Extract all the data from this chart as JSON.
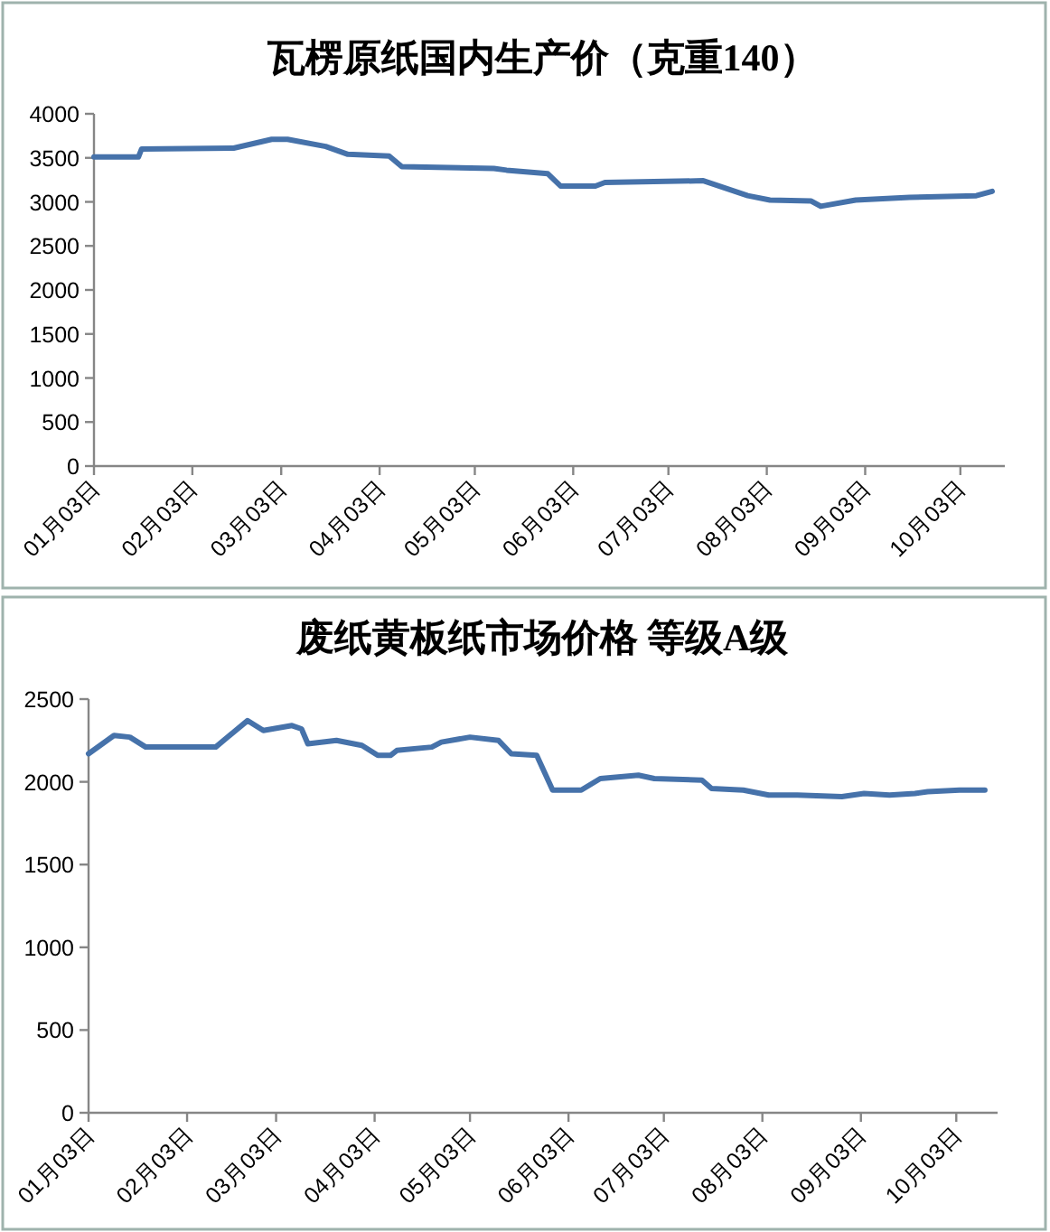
{
  "chart_data": [
    {
      "type": "line",
      "title": "瓦楞原纸国内生产价（克重140）",
      "x": [
        "--01-03",
        "--01-17",
        "--01-18",
        "--02-16",
        "--02-28",
        "--03-05",
        "--03-17",
        "--03-24",
        "--04-06",
        "--04-10",
        "--05-09",
        "--05-13",
        "--05-26",
        "--05-30",
        "--06-10",
        "--06-13",
        "--07-14",
        "--07-28",
        "--08-04",
        "--08-17",
        "--08-20",
        "--08-31",
        "--09-17",
        "--10-08",
        "--10-13"
      ],
      "series": [
        {
          "color": "#4672aa",
          "values": [
            3510,
            3510,
            3600,
            3610,
            3710,
            3710,
            3630,
            3540,
            3520,
            3400,
            3380,
            3360,
            3320,
            3180,
            3180,
            3220,
            3240,
            3070,
            3020,
            3010,
            2950,
            3020,
            3050,
            3070,
            3120
          ]
        }
      ],
      "xlim": [
        "--01-03",
        "--10-17"
      ],
      "ylim": [
        0,
        4000
      ],
      "yticks": [
        0,
        500,
        1000,
        1500,
        2000,
        2500,
        3000,
        3500,
        4000
      ],
      "xticks": [
        {
          "value": "--01-03",
          "label": "01月03日"
        },
        {
          "value": "--02-03",
          "label": "02月03日"
        },
        {
          "value": "--03-03",
          "label": "03月03日"
        },
        {
          "value": "--04-03",
          "label": "04月03日"
        },
        {
          "value": "--05-03",
          "label": "05月03日"
        },
        {
          "value": "--06-03",
          "label": "06月03日"
        },
        {
          "value": "--07-03",
          "label": "07月03日"
        },
        {
          "value": "--08-03",
          "label": "08月03日"
        },
        {
          "value": "--09-03",
          "label": "09月03日"
        },
        {
          "value": "--10-03",
          "label": "10月03日"
        }
      ]
    },
    {
      "type": "line",
      "title": "废纸黄板纸市场价格 等级A级",
      "x": [
        "--01-03",
        "--01-11",
        "--01-16",
        "--01-21",
        "--02-12",
        "--02-22",
        "--02-27",
        "--03-08",
        "--03-11",
        "--03-13",
        "--03-22",
        "--03-30",
        "--04-04",
        "--04-08",
        "--04-10",
        "--04-21",
        "--04-24",
        "--05-03",
        "--05-12",
        "--05-16",
        "--05-24",
        "--05-29",
        "--06-07",
        "--06-13",
        "--06-25",
        "--06-30",
        "--07-15",
        "--07-18",
        "--07-28",
        "--08-05",
        "--08-14",
        "--08-28",
        "--09-04",
        "--09-12",
        "--09-20",
        "--09-24",
        "--10-04",
        "--10-12"
      ],
      "series": [
        {
          "color": "#4672aa",
          "values": [
            2170,
            2280,
            2270,
            2210,
            2210,
            2370,
            2310,
            2340,
            2320,
            2230,
            2250,
            2220,
            2160,
            2160,
            2190,
            2210,
            2240,
            2270,
            2250,
            2170,
            2160,
            1950,
            1950,
            2020,
            2040,
            2020,
            2010,
            1960,
            1950,
            1920,
            1920,
            1910,
            1930,
            1920,
            1930,
            1940,
            1950,
            1950
          ]
        }
      ],
      "xlim": [
        "--01-03",
        "--10-16"
      ],
      "ylim": [
        0,
        2500
      ],
      "yticks": [
        0,
        500,
        1000,
        1500,
        2000,
        2500
      ],
      "xticks": [
        {
          "value": "--01-03",
          "label": "01月03日"
        },
        {
          "value": "--02-03",
          "label": "02月03日"
        },
        {
          "value": "--03-03",
          "label": "03月03日"
        },
        {
          "value": "--04-03",
          "label": "04月03日"
        },
        {
          "value": "--05-03",
          "label": "05月03日"
        },
        {
          "value": "--06-03",
          "label": "06月03日"
        },
        {
          "value": "--07-03",
          "label": "07月03日"
        },
        {
          "value": "--08-03",
          "label": "08月03日"
        },
        {
          "value": "--09-03",
          "label": "09月03日"
        },
        {
          "value": "--10-03",
          "label": "10月03日"
        }
      ]
    }
  ]
}
